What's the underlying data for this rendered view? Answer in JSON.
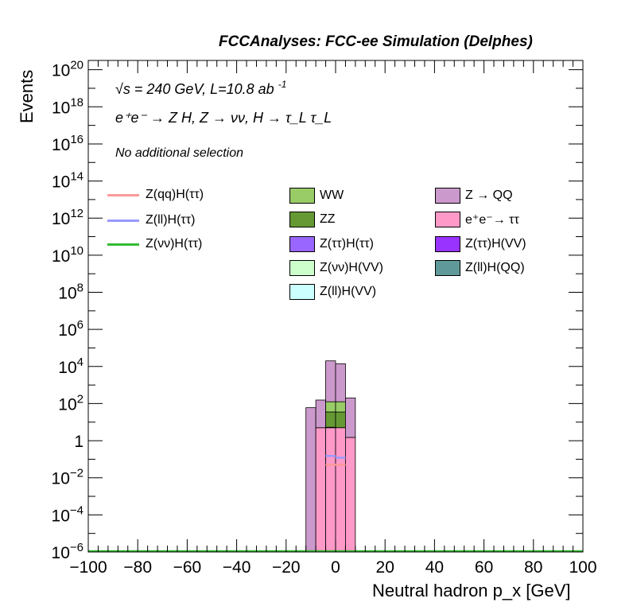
{
  "title": "FCCAnalyses: FCC-ee Simulation (Delphes)",
  "annotations": {
    "energy_prefix": "√s = 240 GeV, L=10.8 ab",
    "energy_exp": "-1",
    "process": "e⁺e⁻ → Z H, Z → νν, H → τ_L τ_L",
    "selection": "No additional selection"
  },
  "chart_data": {
    "type": "bar",
    "stacked": true,
    "xlabel": "Neutral hadron p_x [GeV]",
    "ylabel": "Events",
    "xlim": [
      -100,
      100
    ],
    "ylim_exponent": [
      -6,
      20.5
    ],
    "log_y": true,
    "x_ticks": [
      -100,
      -80,
      -60,
      -40,
      -20,
      0,
      20,
      40,
      60,
      80,
      100
    ],
    "y_tick_exponents": [
      -6,
      -4,
      -2,
      0,
      2,
      4,
      6,
      8,
      10,
      12,
      14,
      16,
      18,
      20
    ],
    "bin_edges": [
      -12,
      -8,
      -4,
      0,
      4,
      8
    ],
    "series": [
      {
        "name": "e⁺e⁻→ ττ",
        "color": "#ff99c8",
        "values": [
          0,
          5,
          5,
          5,
          1.5
        ]
      },
      {
        "name": "Z(ττ)H(VV)",
        "color": "#9933ff",
        "values": [
          0,
          0,
          0.3,
          0,
          0
        ]
      },
      {
        "name": "Z(ll)H(QQ)",
        "color": "#5f9999",
        "values": [
          0,
          0,
          0,
          0.05,
          0
        ]
      },
      {
        "name": "ZZ",
        "color": "#669933",
        "values": [
          0,
          0,
          30,
          30,
          0
        ]
      },
      {
        "name": "WW",
        "color": "#99cc66",
        "values": [
          0,
          0,
          90,
          90,
          0
        ]
      },
      {
        "name": "Z(ττ)H(ττ)",
        "color": "#9966ff",
        "values": [
          0,
          0,
          0.1,
          0.1,
          0
        ]
      },
      {
        "name": "Z(νν)H(VV)",
        "color": "#ccffcc",
        "values": [
          0,
          0,
          0.2,
          0.2,
          0
        ]
      },
      {
        "name": "Z(ll)H(VV)",
        "color": "#ccffff",
        "values": [
          0,
          0,
          0.15,
          0.2,
          0
        ]
      },
      {
        "name": "Z → QQ",
        "color": "#cc99cc",
        "values": [
          60,
          150,
          20000,
          14000,
          200
        ]
      }
    ],
    "lines": [
      {
        "name": "Z(qq)H(ττ)",
        "color": "#ff9999",
        "values": [
          0,
          0,
          0.05,
          0.05,
          0
        ]
      },
      {
        "name": "Z(ll)H(ττ)",
        "color": "#9999ff",
        "values": [
          0,
          0,
          0.15,
          0.12,
          0
        ]
      },
      {
        "name": "Z(νν)H(ττ)",
        "color": "#33bb33",
        "values": [
          1e-06,
          1e-06,
          1e-06,
          1e-06,
          1e-06
        ]
      }
    ]
  },
  "legend": {
    "col1": [
      "Z(qq)H(ττ)",
      "Z(ll)H(ττ)",
      "Z(νν)H(ττ)"
    ],
    "col2": [
      "WW",
      "ZZ",
      "Z(ττ)H(ττ)",
      "Z(νν)H(VV)",
      "Z(ll)H(VV)"
    ],
    "col3": [
      "Z → QQ",
      "e⁺e⁻→ ττ",
      "Z(ττ)H(VV)",
      "Z(ll)H(QQ)"
    ]
  }
}
